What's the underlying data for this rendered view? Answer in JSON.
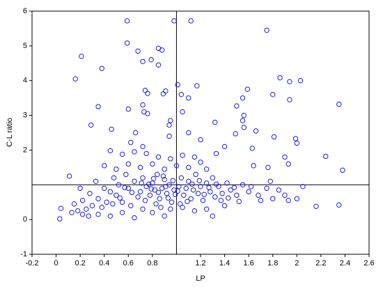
{
  "chart_data": {
    "type": "scatter",
    "xlabel": "LP",
    "ylabel": "C-L ratio",
    "color": "#1f1fd6",
    "xlim": [
      -0.2,
      2.6
    ],
    "xticks": [
      -0.2,
      0,
      0.2,
      0.4,
      0.6,
      0.8,
      1.2,
      1.4,
      1.6,
      1.8,
      2,
      2.2,
      2.4,
      2.6
    ],
    "ylim": [
      -1,
      6
    ],
    "yticks": [
      -1,
      0,
      2,
      3,
      4,
      5,
      6
    ],
    "vlines": [
      1
    ],
    "hlines": [
      1
    ],
    "x": [
      0.59,
      0.98,
      1.12,
      1.75,
      0.59,
      0.85,
      0.88,
      0.68,
      0.21,
      0.85,
      0.72,
      0.79,
      0.38,
      0.16,
      1.86,
      2.03,
      1.94,
      1.01,
      1.17,
      0.74,
      1.59,
      0.76,
      0.89,
      0.91,
      1.8,
      1.55,
      2.35,
      0.35,
      1.1,
      1.04,
      1.94,
      1.5,
      0.72,
      0.73,
      0.76,
      0.6,
      1.05,
      1.56,
      1.55,
      1.32,
      0.29,
      0.95,
      0.94,
      1.56,
      0.46,
      0.66,
      1.66,
      1.49,
      1.81,
      1.99,
      2.0,
      0.94,
      1.1,
      1.2,
      0.62,
      0.72,
      1.4,
      1.63,
      2.24,
      2.38,
      0.45,
      0.55,
      0.11,
      1.33,
      1.64,
      1.76,
      1.93,
      1.9,
      2.05,
      2.16,
      2.35,
      1.93,
      0.03,
      0.04,
      0.13,
      0.22,
      0.6,
      0.65,
      0.7,
      0.72,
      0.75,
      0.78,
      0.8,
      0.82,
      0.84,
      0.86,
      0.88,
      0.9,
      0.92,
      0.94,
      0.96,
      0.98,
      1.02,
      1.04,
      1.06,
      1.08,
      1.1,
      1.12,
      1.14,
      1.16,
      1.18,
      1.2,
      1.22,
      1.25,
      1.28,
      1.3,
      1.32,
      1.35,
      1.38,
      1.42,
      1.45,
      1.5,
      1.55,
      1.6,
      1.68,
      1.75,
      1.8,
      1.85,
      0.5,
      0.52,
      0.55,
      0.58,
      0.62,
      0.45,
      0.48,
      0.42,
      0.4,
      0.38,
      0.35,
      0.33,
      0.3,
      0.28,
      0.25,
      0.22,
      0.2,
      0.27,
      0.35,
      0.45,
      0.55,
      0.65,
      0.72,
      0.8,
      0.9,
      0.95,
      1.05,
      1.15,
      1.25,
      1.3,
      1.4,
      0.7,
      0.8,
      0.9,
      1.0,
      1.1,
      1.2,
      0.6,
      0.5,
      0.4,
      0.85,
      0.95,
      1.05,
      0.75,
      0.65,
      1.15,
      1.25,
      0.68,
      0.74,
      0.83,
      0.87,
      0.93,
      0.99,
      1.03,
      1.09,
      0.77,
      0.81,
      0.85,
      0.89,
      0.91,
      0.97,
      1.01,
      0.79,
      0.71,
      0.63,
      0.57,
      0.53,
      0.47,
      1.13,
      1.19,
      1.23,
      1.27,
      1.33,
      1.37,
      1.43,
      1.48,
      1.52,
      1.62,
      1.7,
      1.78,
      1.9,
      2.0,
      0.15,
      0.18
    ],
    "values": [
      5.72,
      5.72,
      5.72,
      5.45,
      5.08,
      4.93,
      4.88,
      4.85,
      4.7,
      4.45,
      4.55,
      4.6,
      4.35,
      4.05,
      4.08,
      4.0,
      3.97,
      3.88,
      3.85,
      3.72,
      3.75,
      3.63,
      3.62,
      3.7,
      3.6,
      3.5,
      3.32,
      3.25,
      3.5,
      3.6,
      3.45,
      3.27,
      3.3,
      3.1,
      3.05,
      3.18,
      3.1,
      3.0,
      2.85,
      2.8,
      2.72,
      2.85,
      2.72,
      2.65,
      2.6,
      2.5,
      2.55,
      2.47,
      2.38,
      2.33,
      2.2,
      2.4,
      2.5,
      2.3,
      2.22,
      2.1,
      2.1,
      2.05,
      1.82,
      1.42,
      1.98,
      1.88,
      1.25,
      1.9,
      1.55,
      1.5,
      1.6,
      1.8,
      0.95,
      0.38,
      0.42,
      0.55,
      0.02,
      0.32,
      0.2,
      0.15,
      0.9,
      1.1,
      0.8,
      1.2,
      0.95,
      0.7,
      1.05,
      0.85,
      1.3,
      0.6,
      0.9,
      1.15,
      0.75,
      1.0,
      0.5,
      0.85,
      0.95,
      1.2,
      0.7,
      0.9,
      1.1,
      0.6,
      0.85,
      1.3,
      0.75,
      0.95,
      0.55,
      1.05,
      0.8,
      1.2,
      0.65,
      0.95,
      0.75,
      1.05,
      0.85,
      0.7,
      1.0,
      0.8,
      0.7,
      0.9,
      0.6,
      0.85,
      0.7,
      1.0,
      0.5,
      1.3,
      0.4,
      0.8,
      1.2,
      0.5,
      0.9,
      0.35,
      0.6,
      1.1,
      0.4,
      0.75,
      0.3,
      0.55,
      0.9,
      0.1,
      0.15,
      0.1,
      0.2,
      0.05,
      0.3,
      0.2,
      0.1,
      0.3,
      0.35,
      0.25,
      0.3,
      0.1,
      0.4,
      1.5,
      1.6,
      1.45,
      1.55,
      1.5,
      1.65,
      1.6,
      1.45,
      1.55,
      1.8,
      1.75,
      1.85,
      1.9,
      1.95,
      1.8,
      1.45,
      0.65,
      0.55,
      0.45,
      0.35,
      0.62,
      0.72,
      0.45,
      0.52,
      1.02,
      1.18,
      0.78,
      1.25,
      0.95,
      1.12,
      0.82,
      0.88,
      1.05,
      0.78,
      0.92,
      0.62,
      0.45,
      1.02,
      1.12,
      0.72,
      0.92,
      1.02,
      0.55,
      0.62,
      0.92,
      0.52,
      0.95,
      0.55,
      1.1,
      0.7,
      0.6,
      0.45,
      0.25
    ]
  }
}
